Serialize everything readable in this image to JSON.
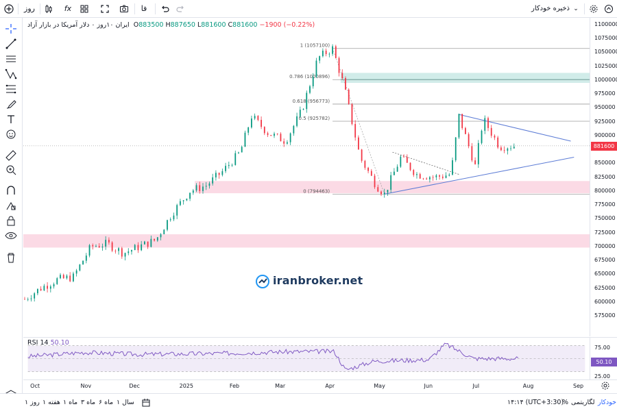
{
  "toolbar": {
    "interval": "روز",
    "indicators_label": "fx",
    "compare_label": "فا",
    "autosave": "ذخیره خودکار"
  },
  "legend": {
    "symbol": "ایران ۱۰روز ۰ دلار آمریکا در بازار آزاد",
    "open_label": "O",
    "open": "883500",
    "high_label": "H",
    "high": "887650",
    "low_label": "L",
    "low": "881600",
    "close_label": "C",
    "close": "881600",
    "change": "−1900 (−0.22%)"
  },
  "price_scale": {
    "ticks": [
      "1100000",
      "1075000",
      "1050000",
      "1025000",
      "1000000",
      "975000",
      "950000",
      "925000",
      "900000",
      "875000",
      "850000",
      "825000",
      "800000",
      "775000",
      "750000",
      "725000",
      "700000",
      "675000",
      "650000",
      "625000",
      "600000",
      "575000"
    ],
    "last_price": "881600"
  },
  "fib": {
    "levels": [
      {
        "label": "1 (1057100)",
        "value": 1057100
      },
      {
        "label": "0.786 (1000896)",
        "value": 1000896
      },
      {
        "label": "0.618 (956773)",
        "value": 956773
      },
      {
        "label": "0.5 (925782)",
        "value": 925782
      },
      {
        "label": "0 (794463)",
        "value": 794463
      }
    ]
  },
  "rsi": {
    "name": "RSI",
    "period": "14",
    "value": "50.10",
    "ticks": [
      "75.00",
      "25.00"
    ],
    "last": "50.10"
  },
  "time_axis": [
    "Oct",
    "Nov",
    "Dec",
    "2025",
    "Feb",
    "Mar",
    "Apr",
    "May",
    "Jun",
    "Jul",
    "Aug",
    "Sep"
  ],
  "watermark": "iranbroker.net",
  "bottom": {
    "ranges": [
      "روز ۱",
      "هفته ۱",
      "ماه ۱",
      "ماه ۳",
      "ماه ۶",
      "سال ۱"
    ],
    "time": "۱۴:۱۴ (UTC+3:30)",
    "percent": "%",
    "log": "لگاریتمی",
    "auto": "خودکار"
  },
  "colors": {
    "up": "#089981",
    "down": "#f23645",
    "rsi": "#7e57c2",
    "zone_pink": "#f8bbd0",
    "zone_teal": "#b2dfdb",
    "trendline": "#5b7bd5"
  },
  "chart_data": {
    "type": "candlestick",
    "ylim": [
      560000,
      1110000
    ],
    "close_path": [
      [
        "2024-09-25",
        605000
      ],
      [
        "2024-10-05",
        625000
      ],
      [
        "2024-10-15",
        640000
      ],
      [
        "2024-10-25",
        645000
      ],
      [
        "2024-11-05",
        700000
      ],
      [
        "2024-11-15",
        705000
      ],
      [
        "2024-11-25",
        688000
      ],
      [
        "2024-12-05",
        700000
      ],
      [
        "2024-12-15",
        712000
      ],
      [
        "2024-12-25",
        760000
      ],
      [
        "2025-01-05",
        800000
      ],
      [
        "2025-01-15",
        810000
      ],
      [
        "2025-01-25",
        835000
      ],
      [
        "2025-02-05",
        870000
      ],
      [
        "2025-02-12",
        935000
      ],
      [
        "2025-02-22",
        905000
      ],
      [
        "2025-03-05",
        890000
      ],
      [
        "2025-03-15",
        945000
      ],
      [
        "2025-03-25",
        1040000
      ],
      [
        "2025-04-03",
        1057100
      ],
      [
        "2025-04-10",
        990000
      ],
      [
        "2025-04-20",
        860000
      ],
      [
        "2025-04-30",
        810000
      ],
      [
        "2025-05-05",
        794463
      ],
      [
        "2025-05-15",
        860000
      ],
      [
        "2025-05-25",
        830000
      ],
      [
        "2025-06-05",
        825000
      ],
      [
        "2025-06-15",
        830000
      ],
      [
        "2025-06-20",
        935000
      ],
      [
        "2025-06-30",
        845000
      ],
      [
        "2025-07-05",
        930000
      ],
      [
        "2025-07-15",
        880000
      ],
      [
        "2025-07-25",
        881600
      ]
    ],
    "zones": [
      {
        "from": 995000,
        "to": 1013000,
        "color": "teal"
      },
      {
        "from": 796000,
        "to": 818000,
        "color": "pink"
      },
      {
        "from": 698000,
        "to": 722000,
        "color": "pink"
      }
    ],
    "rsi_ylim": [
      15,
      85
    ],
    "rsi_path": [
      [
        0,
        54
      ],
      [
        0.1,
        62
      ],
      [
        0.2,
        58
      ],
      [
        0.35,
        60
      ],
      [
        0.45,
        63
      ],
      [
        0.55,
        64
      ],
      [
        0.57,
        28
      ],
      [
        0.62,
        45
      ],
      [
        0.72,
        48
      ],
      [
        0.75,
        78
      ],
      [
        0.8,
        50
      ],
      [
        0.88,
        50
      ]
    ]
  }
}
